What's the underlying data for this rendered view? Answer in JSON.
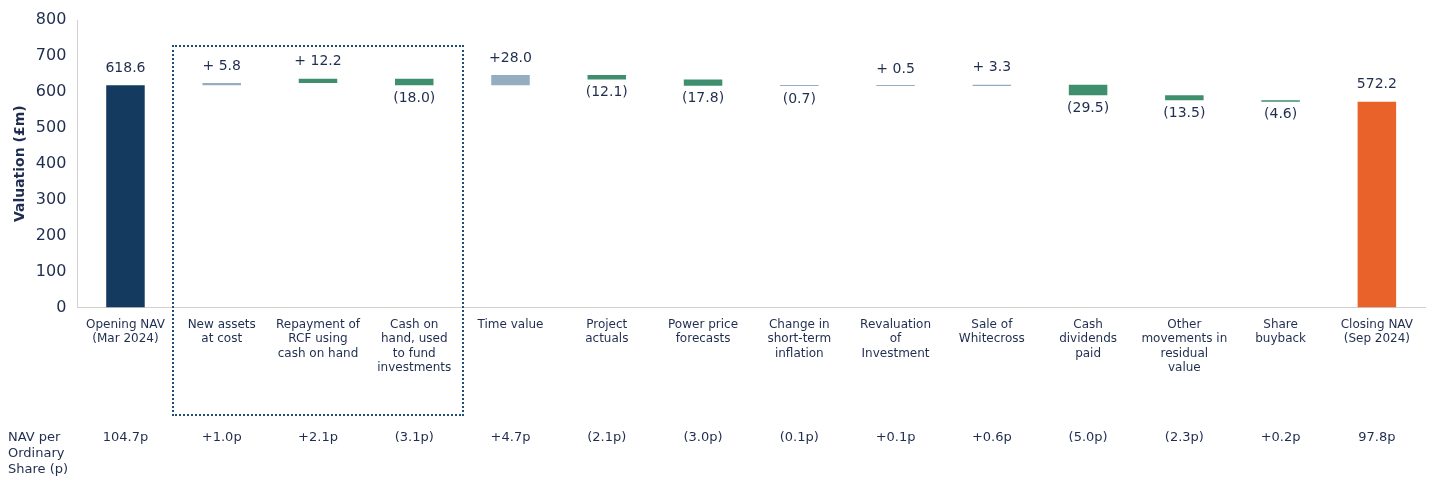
{
  "chart_data": {
    "type": "bar",
    "ylabel": "Valuation (£m)",
    "categories": [
      "Opening NAV (Mar 2024)",
      "New assets at cost",
      "Repayment of RCF using cash on hand",
      "Cash on hand, used to fund investments",
      "Time value",
      "Project actuals",
      "Power price forecasts",
      "Change in short-term inflation",
      "Revaluation of Investment",
      "Sale of Whitecross",
      "Cash dividends paid",
      "Other movements in residual value",
      "Share buyback",
      "Closing NAV (Sep 2024)"
    ],
    "values": [
      618.6,
      5.8,
      12.2,
      -18.0,
      28.0,
      -12.1,
      -17.8,
      -0.7,
      0.5,
      3.3,
      -29.5,
      -13.5,
      -4.6,
      572.2
    ],
    "base": [
      null,
      618.6,
      624.4,
      636.6,
      618.6,
      646.6,
      634.5,
      616.7,
      616.0,
      616.5,
      619.8,
      590.3,
      576.8,
      null
    ],
    "colors": [
      "#143a5f",
      "#94adc0",
      "#3f8f6f",
      "#3f8f6f",
      "#94adc0",
      "#3f8f6f",
      "#3f8f6f",
      "#94adc0",
      "#94adc0",
      "#94adc0",
      "#3f8f6f",
      "#3f8f6f",
      "#3f8f6f",
      "#e8622a"
    ],
    "value_labels": [
      "618.6",
      "+ 5.8",
      "+ 12.2",
      "(18.0)",
      "+28.0",
      "(12.1)",
      "(17.8)",
      "(0.7)",
      "+ 0.5",
      "+ 3.3",
      "(29.5)",
      "(13.5)",
      "(4.6)",
      "572.2"
    ],
    "ylim": [
      0,
      800
    ],
    "yticks": [
      0,
      100,
      200,
      300,
      400,
      500,
      600,
      700,
      800
    ],
    "grid": false,
    "legend": false,
    "annotations": [
      "NAV per Ordinary Share (p)",
      "104.7p",
      "+1.0p",
      "+2.1p",
      "(3.1p)",
      "+4.7p",
      "(2.1p)",
      "(3.0p)",
      "(0.1p)",
      "+0.1p",
      "+0.6p",
      "(5.0p)",
      "(2.3p)",
      "+0.2p",
      "97.8p"
    ]
  }
}
